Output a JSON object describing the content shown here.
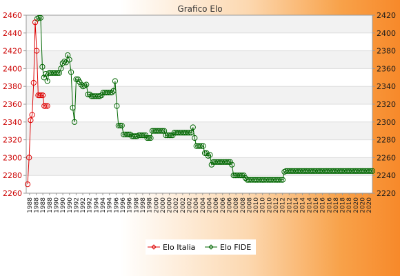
{
  "chart_data": {
    "type": "line",
    "title": "Grafico Elo",
    "legend_position": "bottom",
    "grid": true,
    "left_axis": {
      "ylim": [
        2260,
        2460
      ],
      "ticks": [
        2260,
        2280,
        2300,
        2320,
        2340,
        2360,
        2380,
        2400,
        2420,
        2440,
        2460
      ]
    },
    "right_axis": {
      "ylim": [
        2220,
        2420
      ],
      "ticks": [
        2220,
        2240,
        2260,
        2280,
        2300,
        2320,
        2340,
        2360,
        2380,
        2400,
        2420
      ]
    },
    "x_labels": [
      "1988",
      "1990",
      "1992",
      "1994",
      "1996",
      "1998",
      "2000",
      "2002",
      "2004",
      "2006",
      "2008",
      "2010",
      "2012",
      "2014",
      "2016",
      "2018",
      "2020"
    ],
    "series": [
      {
        "name": "Elo Italia",
        "color": "#dd0000",
        "axis": "left",
        "values": [
          2270,
          2300,
          2342,
          2348,
          2384,
          2452,
          2420,
          2370,
          2370,
          2370,
          2370,
          2358,
          2358,
          2358
        ]
      },
      {
        "name": "Elo FIDE",
        "color": "#006600",
        "axis": "right",
        "values": [
          2416,
          2417,
          2417,
          2362,
          2350,
          2354,
          2346,
          2355,
          2355,
          2355,
          2355,
          2355,
          2355,
          2355,
          2360,
          2366,
          2368,
          2367,
          2375,
          2370,
          2356,
          2316,
          2300,
          2348,
          2348,
          2345,
          2342,
          2340,
          2341,
          2342,
          2331,
          2331,
          2329,
          2329,
          2329,
          2329,
          2329,
          2329,
          2330,
          2333,
          2333,
          2333,
          2333,
          2333,
          2333,
          2335,
          2346,
          2318,
          2296,
          2296,
          2296,
          2286,
          2286,
          2286,
          2286,
          2286,
          2284,
          2284,
          2284,
          2284,
          2285,
          2285,
          2285,
          2285,
          2285,
          2282,
          2282,
          2282,
          2290,
          2290,
          2290,
          2290,
          2290,
          2290,
          2290,
          2290,
          2285,
          2285,
          2285,
          2285,
          2285,
          2288,
          2288,
          2288,
          2288,
          2288,
          2288,
          2288,
          2288,
          2288,
          2288,
          2288,
          2294,
          2282,
          2273,
          2273,
          2273,
          2273,
          2273,
          2265,
          2265,
          2262,
          2263,
          2252,
          2255,
          2255,
          2255,
          2255,
          2255,
          2255,
          2255,
          2255,
          2255,
          2255,
          2255,
          2252,
          2240,
          2240,
          2240,
          2240,
          2240,
          2240,
          2240,
          2237,
          2235,
          2235,
          2235,
          2235,
          2235,
          2235,
          2235,
          2235,
          2235,
          2235,
          2235,
          2235,
          2235,
          2235,
          2235,
          2235,
          2235,
          2235,
          2235,
          2235,
          2235,
          2235,
          2244,
          2245,
          2245,
          2245,
          2245,
          2245,
          2245,
          2245,
          2245,
          2245,
          2245,
          2245,
          2245,
          2245,
          2245,
          2245,
          2245,
          2245,
          2245,
          2245,
          2245,
          2245,
          2245,
          2245,
          2245,
          2245,
          2245,
          2245,
          2245,
          2245,
          2245,
          2245,
          2245,
          2245,
          2245,
          2245,
          2245,
          2245,
          2245,
          2245,
          2245,
          2245,
          2245,
          2245,
          2245,
          2245,
          2245,
          2245,
          2245,
          2245,
          2245,
          2245,
          2245
        ]
      }
    ]
  }
}
